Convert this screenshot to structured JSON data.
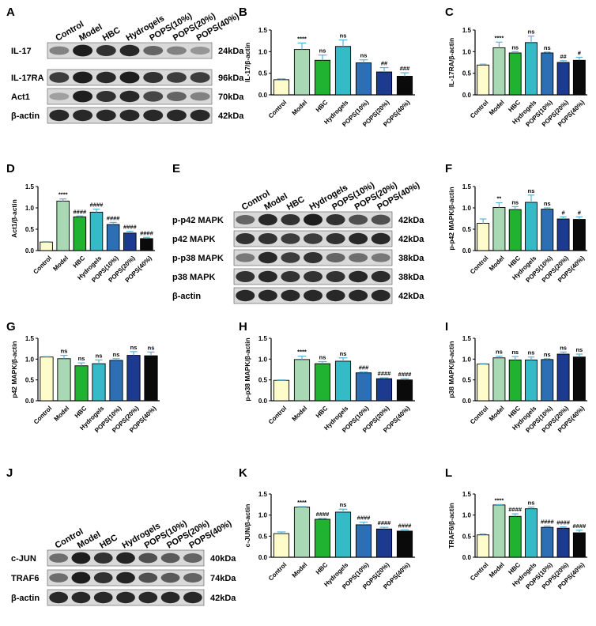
{
  "colors": {
    "Control": "#FFFCCB",
    "Model": "#A8D8B4",
    "HBC": "#1FB331",
    "Hydrogels": "#35BAC8",
    "POPS(10%)": "#2D6FB5",
    "POPS(20%)": "#1C3A8F",
    "POPS(40%)": "#0A0A0A",
    "error": "#55B4D5"
  },
  "blots": [
    {
      "panel": "A",
      "lanes": [
        "Control",
        "Model",
        "HBC",
        "Hydrogels",
        "POPS(10%)",
        "POPS(20%)",
        "POPS(40%)"
      ],
      "rows": [
        {
          "label": "IL-17",
          "size": "24kDa"
        },
        {
          "label": "IL-17RA",
          "size": "96kDa"
        },
        {
          "label": "Act1",
          "size": "70kDa"
        },
        {
          "label": "β-actin",
          "size": "42kDa"
        }
      ]
    },
    {
      "panel": "E",
      "lanes": [
        "Control",
        "Model",
        "HBC",
        "Hydrogels",
        "POPS(10%)",
        "POPS(20%)",
        "POPS(40%)"
      ],
      "rows": [
        {
          "label": "p-p42 MAPK",
          "size": "42kDa"
        },
        {
          "label": "p42 MAPK",
          "size": "42kDa"
        },
        {
          "label": "p-p38 MAPK",
          "size": "38kDa"
        },
        {
          "label": "p38 MAPK",
          "size": "38kDa"
        },
        {
          "label": "β-actin",
          "size": "42kDa"
        }
      ]
    },
    {
      "panel": "J",
      "lanes": [
        "Control",
        "Model",
        "HBC",
        "Hydrogels",
        "POPS(10%)",
        "POPS(20%)",
        "POPS(40%)"
      ],
      "rows": [
        {
          "label": "c-JUN",
          "size": "40kDa"
        },
        {
          "label": "TRAF6",
          "size": "74kDa"
        },
        {
          "label": "β-actin",
          "size": "42kDa"
        }
      ]
    }
  ],
  "chart_data": [
    {
      "panel": "B",
      "type": "bar",
      "ylabel": "IL-17/β-actin",
      "ylim": [
        0,
        1.5
      ],
      "yticks": [
        "0.0",
        "0.5",
        "1.0",
        "1.5"
      ],
      "categories": [
        "Control",
        "Model",
        "HBC",
        "Hydrogels",
        "POPS(10%)",
        "POPS(20%)",
        "POPS(40%)"
      ],
      "values": [
        0.35,
        1.05,
        0.8,
        1.12,
        0.74,
        0.53,
        0.43
      ],
      "errors": [
        0.02,
        0.15,
        0.12,
        0.15,
        0.07,
        0.1,
        0.08
      ],
      "annotations": [
        "",
        "****",
        "ns",
        "ns",
        "ns",
        "##",
        "###"
      ]
    },
    {
      "panel": "C",
      "type": "bar",
      "ylabel": "IL-17RA/β-actin",
      "ylim": [
        0,
        1.5
      ],
      "yticks": [
        "0.0",
        "0.5",
        "1.0",
        "1.5"
      ],
      "categories": [
        "Control",
        "Model",
        "HBC",
        "Hydrogels",
        "POPS(10%)",
        "POPS(20%)",
        "POPS(40%)"
      ],
      "values": [
        0.69,
        1.09,
        0.97,
        1.21,
        0.97,
        0.75,
        0.8
      ],
      "errors": [
        0.02,
        0.13,
        0.03,
        0.15,
        0.02,
        0.04,
        0.07
      ],
      "annotations": [
        "",
        "****",
        "ns",
        "ns",
        "ns",
        "##",
        "#"
      ]
    },
    {
      "panel": "D",
      "type": "bar",
      "ylabel": "Act1/β-actin",
      "ylim": [
        0,
        1.5
      ],
      "yticks": [
        "0.0",
        "0.5",
        "1.0",
        "1.5"
      ],
      "categories": [
        "Control",
        "Model",
        "HBC",
        "Hydrogels",
        "POPS(10%)",
        "POPS(20%)",
        "POPS(40%)"
      ],
      "values": [
        0.2,
        1.16,
        0.79,
        0.9,
        0.61,
        0.41,
        0.28
      ],
      "errors": [
        0.01,
        0.05,
        0.02,
        0.07,
        0.05,
        0.04,
        0.03
      ],
      "annotations": [
        "",
        "****",
        "####",
        "####",
        "####",
        "####",
        "####"
      ]
    },
    {
      "panel": "F",
      "type": "bar",
      "ylabel": "p-p42 MAPK/β-actin",
      "ylim": [
        0,
        1.5
      ],
      "yticks": [
        "0.0",
        "0.5",
        "1.0",
        "1.5"
      ],
      "categories": [
        "Control",
        "Model",
        "HBC",
        "Hydrogels",
        "POPS(10%)",
        "POPS(20%)",
        "POPS(40%)"
      ],
      "values": [
        0.64,
        1.01,
        0.96,
        1.13,
        0.97,
        0.74,
        0.73
      ],
      "errors": [
        0.1,
        0.11,
        0.07,
        0.17,
        0.03,
        0.05,
        0.06
      ],
      "annotations": [
        "",
        "**",
        "ns",
        "ns",
        "ns",
        "#",
        "#"
      ]
    },
    {
      "panel": "G",
      "type": "bar",
      "ylabel": "p42 MAPK/β-actin",
      "ylim": [
        0,
        1.5
      ],
      "yticks": [
        "0.0",
        "0.5",
        "1.0",
        "1.5"
      ],
      "categories": [
        "Control",
        "Model",
        "HBC",
        "Hydrogels",
        "POPS(10%)",
        "POPS(20%)",
        "POPS(40%)"
      ],
      "values": [
        1.05,
        1.01,
        0.84,
        0.89,
        0.97,
        1.09,
        1.08
      ],
      "errors": [
        0.01,
        0.08,
        0.07,
        0.09,
        0.04,
        0.09,
        0.09
      ],
      "annotations": [
        "",
        "ns",
        "ns",
        "ns",
        "ns",
        "ns",
        "ns"
      ]
    },
    {
      "panel": "H",
      "type": "bar",
      "ylabel": "p-p38 MAPK/β-actin",
      "ylim": [
        0,
        1.5
      ],
      "yticks": [
        "0.0",
        "0.5",
        "1.0",
        "1.5"
      ],
      "categories": [
        "Control",
        "Model",
        "HBC",
        "Hydrogels",
        "POPS(10%)",
        "POPS(20%)",
        "POPS(40%)"
      ],
      "values": [
        0.49,
        0.99,
        0.89,
        0.95,
        0.67,
        0.53,
        0.5
      ],
      "errors": [
        0.01,
        0.08,
        0.05,
        0.08,
        0.02,
        0.02,
        0.03
      ],
      "annotations": [
        "",
        "****",
        "ns",
        "ns",
        "###",
        "####",
        "####"
      ]
    },
    {
      "panel": "I",
      "type": "bar",
      "ylabel": "p38 MAPK/β-actin",
      "ylim": [
        0,
        1.5
      ],
      "yticks": [
        "0.0",
        "0.5",
        "1.0",
        "1.5"
      ],
      "categories": [
        "Control",
        "Model",
        "HBC",
        "Hydrogels",
        "POPS(10%)",
        "POPS(20%)",
        "POPS(40%)"
      ],
      "values": [
        0.88,
        1.03,
        0.98,
        0.98,
        0.99,
        1.12,
        1.05
      ],
      "errors": [
        0.01,
        0.04,
        0.08,
        0.07,
        0.02,
        0.05,
        0.07
      ],
      "annotations": [
        "",
        "ns",
        "ns",
        "ns",
        "ns",
        "ns",
        "ns"
      ]
    },
    {
      "panel": "K",
      "type": "bar",
      "ylabel": "c-JUN/β-actin",
      "ylim": [
        0,
        1.5
      ],
      "yticks": [
        "0.0",
        "0.5",
        "1.0",
        "1.5"
      ],
      "categories": [
        "Control",
        "Model",
        "HBC",
        "Hydrogels",
        "POPS(10%)",
        "POPS(20%)",
        "POPS(40%)"
      ],
      "values": [
        0.56,
        1.19,
        0.9,
        1.07,
        0.77,
        0.67,
        0.62
      ],
      "errors": [
        0.04,
        0.01,
        0.02,
        0.07,
        0.06,
        0.04,
        0.03
      ],
      "annotations": [
        "",
        "****",
        "####",
        "ns",
        "####",
        "####",
        "####"
      ]
    },
    {
      "panel": "L",
      "type": "bar",
      "ylabel": "TRAF6/β-actin",
      "ylim": [
        0,
        1.5
      ],
      "yticks": [
        "0.0",
        "0.5",
        "1.0",
        "1.5"
      ],
      "categories": [
        "Control",
        "Model",
        "HBC",
        "Hydrogels",
        "POPS(10%)",
        "POPS(20%)",
        "POPS(40%)"
      ],
      "values": [
        0.53,
        1.24,
        0.97,
        1.15,
        0.71,
        0.69,
        0.58
      ],
      "errors": [
        0.02,
        0.01,
        0.06,
        0.04,
        0.03,
        0.03,
        0.06
      ],
      "annotations": [
        "",
        "****",
        "####",
        "ns",
        "####",
        "####",
        "####"
      ]
    }
  ]
}
